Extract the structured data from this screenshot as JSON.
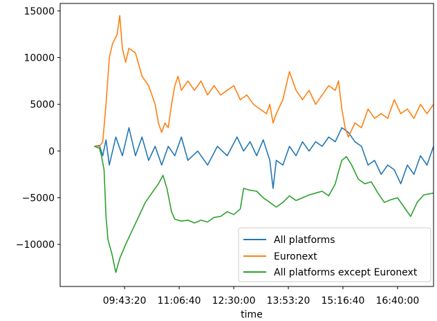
{
  "chart_data": {
    "type": "line",
    "xlabel": "time",
    "ylabel": "",
    "title": "",
    "x_range": [
      "08:05:00",
      "17:35:00"
    ],
    "ylim": [
      -14500,
      15800
    ],
    "x_ticks": [
      "09:43:20",
      "11:06:40",
      "12:30:00",
      "13:53:20",
      "15:16:40",
      "16:40:00"
    ],
    "y_ticks": [
      {
        "value": 15000,
        "label": "15000"
      },
      {
        "value": 10000,
        "label": "10000"
      },
      {
        "value": 5000,
        "label": "5000"
      },
      {
        "value": 0,
        "label": "0"
      },
      {
        "value": -5000,
        "label": "−5000"
      },
      {
        "value": -10000,
        "label": "−10000"
      }
    ],
    "legend_position": "bottom-right",
    "series": [
      {
        "name": "All platforms",
        "color": "#1f77b4",
        "points": [
          [
            "08:57:00",
            500
          ],
          [
            "09:05:00",
            600
          ],
          [
            "09:10:00",
            -500
          ],
          [
            "09:15:00",
            1200
          ],
          [
            "09:20:00",
            -1500
          ],
          [
            "09:30:00",
            1500
          ],
          [
            "09:40:00",
            -500
          ],
          [
            "09:50:00",
            2500
          ],
          [
            "10:00:00",
            -500
          ],
          [
            "10:10:00",
            1500
          ],
          [
            "10:20:00",
            -1000
          ],
          [
            "10:30:00",
            500
          ],
          [
            "10:40:00",
            -1500
          ],
          [
            "10:50:00",
            500
          ],
          [
            "11:00:00",
            -500
          ],
          [
            "11:10:00",
            1500
          ],
          [
            "11:20:00",
            -1000
          ],
          [
            "11:35:00",
            0
          ],
          [
            "11:50:00",
            -1500
          ],
          [
            "12:05:00",
            500
          ],
          [
            "12:20:00",
            -500
          ],
          [
            "12:35:00",
            1500
          ],
          [
            "12:45:00",
            0
          ],
          [
            "12:55:00",
            1000
          ],
          [
            "13:05:00",
            -500
          ],
          [
            "13:15:00",
            1200
          ],
          [
            "13:25:00",
            -1000
          ],
          [
            "13:30:00",
            -4000
          ],
          [
            "13:35:00",
            -1000
          ],
          [
            "13:45:00",
            -1500
          ],
          [
            "13:55:00",
            500
          ],
          [
            "14:05:00",
            -500
          ],
          [
            "14:15:00",
            1000
          ],
          [
            "14:25:00",
            0
          ],
          [
            "14:35:00",
            1000
          ],
          [
            "14:45:00",
            500
          ],
          [
            "14:55:00",
            1500
          ],
          [
            "15:05:00",
            1000
          ],
          [
            "15:15:00",
            2500
          ],
          [
            "15:25:00",
            2000
          ],
          [
            "15:35:00",
            1000
          ],
          [
            "15:45:00",
            500
          ],
          [
            "15:55:00",
            -1500
          ],
          [
            "16:05:00",
            -1000
          ],
          [
            "16:15:00",
            -2500
          ],
          [
            "16:25:00",
            -1500
          ],
          [
            "16:35:00",
            -2000
          ],
          [
            "16:45:00",
            -3500
          ],
          [
            "16:55:00",
            -1500
          ],
          [
            "17:05:00",
            -2500
          ],
          [
            "17:15:00",
            -500
          ],
          [
            "17:25:00",
            -1500
          ],
          [
            "17:35:00",
            500
          ]
        ]
      },
      {
        "name": "Euronext",
        "color": "#ff7f0e",
        "points": [
          [
            "08:57:00",
            500
          ],
          [
            "09:05:00",
            500
          ],
          [
            "09:10:00",
            1000
          ],
          [
            "09:15:00",
            5000
          ],
          [
            "09:20:00",
            10000
          ],
          [
            "09:25:00",
            11500
          ],
          [
            "09:32:00",
            12500
          ],
          [
            "09:36:00",
            14500
          ],
          [
            "09:40:00",
            11000
          ],
          [
            "09:45:00",
            9500
          ],
          [
            "09:50:00",
            11000
          ],
          [
            "10:00:00",
            10500
          ],
          [
            "10:10:00",
            8000
          ],
          [
            "10:20:00",
            7000
          ],
          [
            "10:30:00",
            5000
          ],
          [
            "10:35:00",
            3000
          ],
          [
            "10:40:00",
            2000
          ],
          [
            "10:45:00",
            3000
          ],
          [
            "10:50:00",
            2500
          ],
          [
            "10:55:00",
            5000
          ],
          [
            "11:00:00",
            7000
          ],
          [
            "11:05:00",
            8000
          ],
          [
            "11:10:00",
            6500
          ],
          [
            "11:20:00",
            7500
          ],
          [
            "11:30:00",
            6500
          ],
          [
            "11:40:00",
            7500
          ],
          [
            "11:50:00",
            6000
          ],
          [
            "12:00:00",
            7000
          ],
          [
            "12:10:00",
            6000
          ],
          [
            "12:20:00",
            6500
          ],
          [
            "12:30:00",
            7000
          ],
          [
            "12:40:00",
            5500
          ],
          [
            "12:50:00",
            6000
          ],
          [
            "13:00:00",
            5000
          ],
          [
            "13:10:00",
            4500
          ],
          [
            "13:20:00",
            4000
          ],
          [
            "13:25:00",
            5000
          ],
          [
            "13:30:00",
            3000
          ],
          [
            "13:35:00",
            4000
          ],
          [
            "13:45:00",
            5500
          ],
          [
            "13:50:00",
            7000
          ],
          [
            "13:55:00",
            8500
          ],
          [
            "14:05:00",
            6500
          ],
          [
            "14:15:00",
            5500
          ],
          [
            "14:25:00",
            6500
          ],
          [
            "14:35:00",
            5000
          ],
          [
            "14:45:00",
            6000
          ],
          [
            "14:55:00",
            7000
          ],
          [
            "15:05:00",
            6500
          ],
          [
            "15:10:00",
            7500
          ],
          [
            "15:15:00",
            4500
          ],
          [
            "15:20:00",
            2500
          ],
          [
            "15:25:00",
            1500
          ],
          [
            "15:35:00",
            3000
          ],
          [
            "15:45:00",
            2500
          ],
          [
            "15:55:00",
            4500
          ],
          [
            "16:05:00",
            3500
          ],
          [
            "16:15:00",
            4000
          ],
          [
            "16:25:00",
            3500
          ],
          [
            "16:35:00",
            5500
          ],
          [
            "16:45:00",
            4000
          ],
          [
            "16:55:00",
            4500
          ],
          [
            "17:05:00",
            3500
          ],
          [
            "17:15:00",
            5000
          ],
          [
            "17:25:00",
            4000
          ],
          [
            "17:35:00",
            5000
          ]
        ]
      },
      {
        "name": "All platforms except Euronext",
        "color": "#2ca02c",
        "points": [
          [
            "08:57:00",
            500
          ],
          [
            "09:05:00",
            300
          ],
          [
            "09:08:00",
            -500
          ],
          [
            "09:12:00",
            -2000
          ],
          [
            "09:15:00",
            -7000
          ],
          [
            "09:18:00",
            -9500
          ],
          [
            "09:24:00",
            -11000
          ],
          [
            "09:30:00",
            -13000
          ],
          [
            "09:36:00",
            -11500
          ],
          [
            "09:45:00",
            -10000
          ],
          [
            "09:55:00",
            -8500
          ],
          [
            "10:05:00",
            -7000
          ],
          [
            "10:15:00",
            -5500
          ],
          [
            "10:25:00",
            -4500
          ],
          [
            "10:35:00",
            -3500
          ],
          [
            "10:42:00",
            -2600
          ],
          [
            "10:48:00",
            -4000
          ],
          [
            "10:55:00",
            -6500
          ],
          [
            "11:00:00",
            -7300
          ],
          [
            "11:10:00",
            -7500
          ],
          [
            "11:20:00",
            -7400
          ],
          [
            "11:30:00",
            -7700
          ],
          [
            "11:40:00",
            -7400
          ],
          [
            "11:50:00",
            -7600
          ],
          [
            "12:00:00",
            -7100
          ],
          [
            "12:10:00",
            -7000
          ],
          [
            "12:20:00",
            -6500
          ],
          [
            "12:30:00",
            -6800
          ],
          [
            "12:40:00",
            -6200
          ],
          [
            "12:45:00",
            -4000
          ],
          [
            "12:55:00",
            -4200
          ],
          [
            "13:05:00",
            -4300
          ],
          [
            "13:15:00",
            -5000
          ],
          [
            "13:25:00",
            -5500
          ],
          [
            "13:35:00",
            -6000
          ],
          [
            "13:45:00",
            -5500
          ],
          [
            "13:55:00",
            -4800
          ],
          [
            "14:05:00",
            -5300
          ],
          [
            "14:15:00",
            -5000
          ],
          [
            "14:25:00",
            -4700
          ],
          [
            "14:35:00",
            -4500
          ],
          [
            "14:45:00",
            -4300
          ],
          [
            "14:55:00",
            -4800
          ],
          [
            "15:05:00",
            -3500
          ],
          [
            "15:10:00",
            -2200
          ],
          [
            "15:15:00",
            -1000
          ],
          [
            "15:22:00",
            -600
          ],
          [
            "15:30:00",
            -1500
          ],
          [
            "15:40:00",
            -3000
          ],
          [
            "15:50:00",
            -3500
          ],
          [
            "16:00:00",
            -3300
          ],
          [
            "16:10:00",
            -4500
          ],
          [
            "16:20:00",
            -5500
          ],
          [
            "16:30:00",
            -5200
          ],
          [
            "16:40:00",
            -5000
          ],
          [
            "16:50:00",
            -6000
          ],
          [
            "17:00:00",
            -7000
          ],
          [
            "17:10:00",
            -5500
          ],
          [
            "17:20:00",
            -4700
          ],
          [
            "17:35:00",
            -4500
          ]
        ]
      }
    ]
  }
}
